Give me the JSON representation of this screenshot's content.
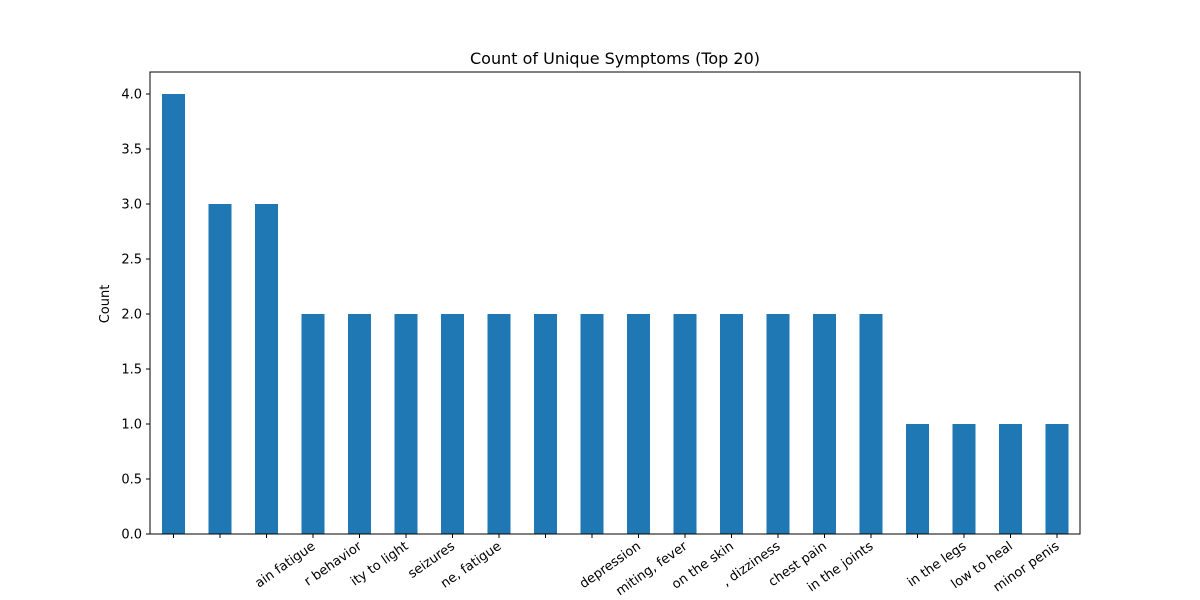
{
  "chart_data": {
    "type": "bar",
    "title": "Count of Unique Symptoms (Top 20)",
    "xlabel": "",
    "ylabel": "Count",
    "ylim": [
      0,
      4.2
    ],
    "yticks": [
      "0.0",
      "0.5",
      "1.0",
      "1.5",
      "2.0",
      "2.5",
      "3.0",
      "3.5",
      "4.0"
    ],
    "color": "#1f77b4",
    "grid": false,
    "categories": [
      "",
      "",
      "",
      "ain fatigue",
      "r behavior",
      "ity to light",
      "seizures",
      "ne, fatigue",
      "",
      "",
      "depression",
      "miting, fever",
      "on the skin",
      ", dizziness",
      "chest pain",
      "in the joints",
      "",
      "in the legs",
      "low to heal",
      "minor penis"
    ],
    "values": [
      4,
      3,
      3,
      2,
      2,
      2,
      2,
      2,
      2,
      2,
      2,
      2,
      2,
      2,
      2,
      2,
      1,
      1,
      1,
      1
    ]
  }
}
